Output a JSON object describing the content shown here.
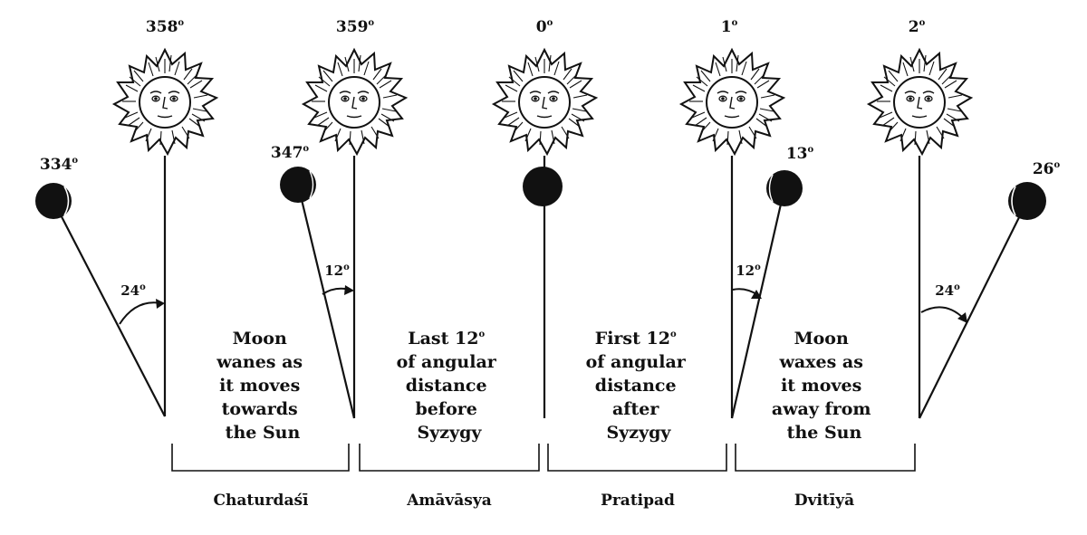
{
  "suns": [
    {
      "id": "sun-1",
      "degree": "358",
      "unit": "o"
    },
    {
      "id": "sun-2",
      "degree": "359",
      "unit": "o"
    },
    {
      "id": "sun-3",
      "degree": "0",
      "unit": "o"
    },
    {
      "id": "sun-4",
      "degree": "1",
      "unit": "o"
    },
    {
      "id": "sun-5",
      "degree": "2",
      "unit": "o"
    }
  ],
  "moons": [
    {
      "degree": "334",
      "unit": "o"
    },
    {
      "degree": "347",
      "unit": "o"
    },
    {
      "degree": "0",
      "unit": "o"
    },
    {
      "degree": "13",
      "unit": "o"
    },
    {
      "degree": "26",
      "unit": "o"
    }
  ],
  "angles": [
    {
      "value": "24",
      "unit": "o"
    },
    {
      "value": "12",
      "unit": "o"
    },
    {
      "value": "12",
      "unit": "o"
    },
    {
      "value": "24",
      "unit": "o"
    }
  ],
  "descriptions": {
    "d1": [
      "Moon",
      "wanes as",
      "it moves",
      "towards",
      "the Sun"
    ],
    "d2_line1": "Last 12",
    "d2_line1_unit": "o",
    "d2": [
      "of angular",
      "distance",
      "before",
      "Syzygy"
    ],
    "d3_line1": "First 12",
    "d3_line1_unit": "o",
    "d3": [
      "of angular",
      "distance",
      "after",
      "Syzygy"
    ],
    "d4": [
      "Moon",
      "waxes as",
      "it moves",
      "away from",
      "the Sun"
    ]
  },
  "tithis": [
    "Chaturdaśī",
    "Amāvāsya",
    "Pratipad",
    "Dvitīyā"
  ],
  "colors": {
    "ink": "#111111",
    "background": "#ffffff"
  }
}
